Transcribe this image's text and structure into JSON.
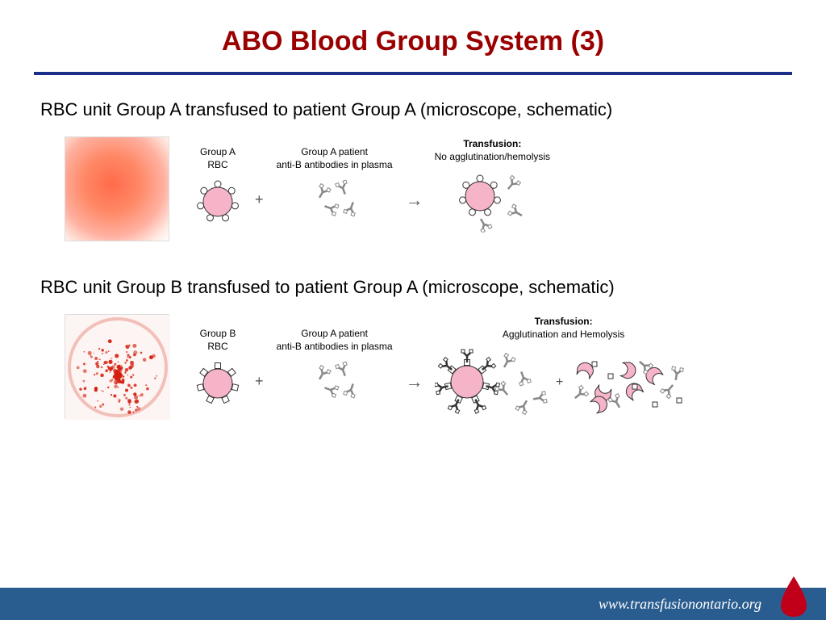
{
  "title": "ABO Blood Group System (3)",
  "title_color": "#9a0000",
  "underline_color": "#1a2e8a",
  "scenario1": {
    "heading": "RBC unit Group A transfused to patient Group A (microscope, schematic)",
    "rbc_label_line1": "Group A",
    "rbc_label_line2": "RBC",
    "antibody_label_line1": "Group A patient",
    "antibody_label_line2": "anti-B antibodies in plasma",
    "result_label_line1": "Transfusion:",
    "result_label_line2": "No agglutination/hemolysis",
    "rbc_antigen_shape": "circle",
    "rbc_fill": "#f6b4c8",
    "rbc_stroke": "#333333",
    "antigen_fill": "#ffffff",
    "antibody_stroke": "#888888",
    "micro_bg": "radial-gradient(circle at 45% 45%, #ff6b4a 0%, #ff8866 35%, #ffb0a0 65%, #ffe8e0 86%, #ffffff 100%)",
    "agglutination": false
  },
  "scenario2": {
    "heading": "RBC unit Group B transfused to patient Group A (microscope, schematic)",
    "rbc_label_line1": "Group B",
    "rbc_label_line2": "RBC",
    "antibody_label_line1": "Group A patient",
    "antibody_label_line2": "anti-B antibodies in plasma",
    "result_label_line1": "Transfusion:",
    "result_label_line2": "Agglutination and Hemolysis",
    "rbc_antigen_shape": "square",
    "rbc_fill": "#f6b4c8",
    "rbc_stroke": "#333333",
    "antigen_fill": "#ffffff",
    "antibody_stroke": "#888888",
    "agglutination": true
  },
  "footer": {
    "url": "www.transfusionontario.org",
    "bar_color": "#2a5d8f",
    "drop_color": "#c00018"
  }
}
